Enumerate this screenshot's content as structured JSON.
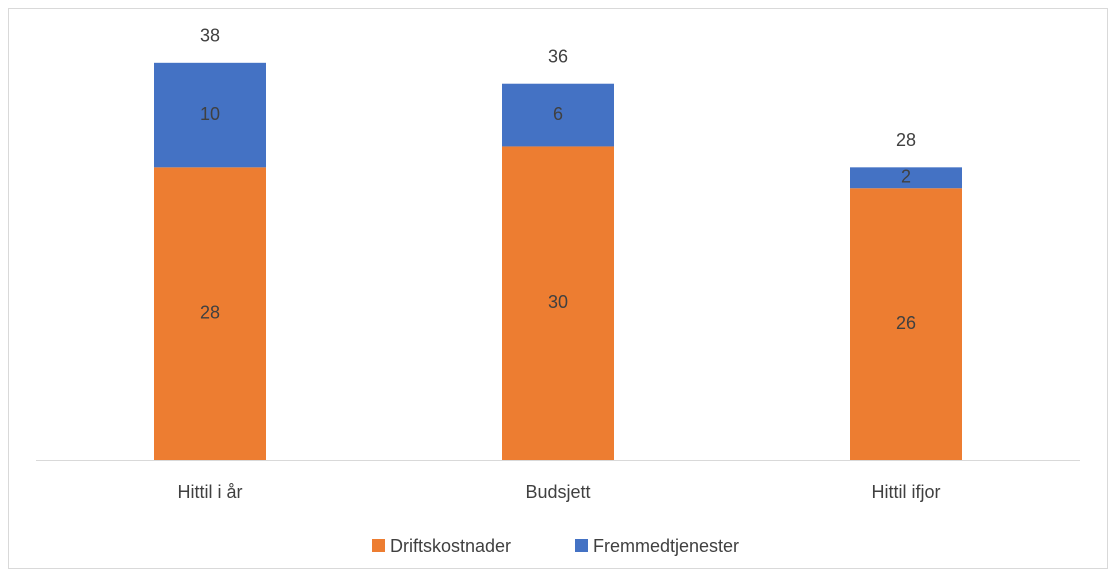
{
  "chart_data": {
    "type": "stacked_bar",
    "categories": [
      "Hittil i år",
      "Budsjett",
      "Hittil ifjor"
    ],
    "series": [
      {
        "name": "Driftskostnader",
        "color": "#ed7d31",
        "values": [
          28,
          30,
          26
        ]
      },
      {
        "name": "Fremmedtjenester",
        "color": "#4472c4",
        "values": [
          10,
          6,
          2
        ]
      }
    ],
    "totals": [
      38,
      36,
      28
    ],
    "ylim": [
      0,
      42
    ],
    "legend": "bottom"
  }
}
